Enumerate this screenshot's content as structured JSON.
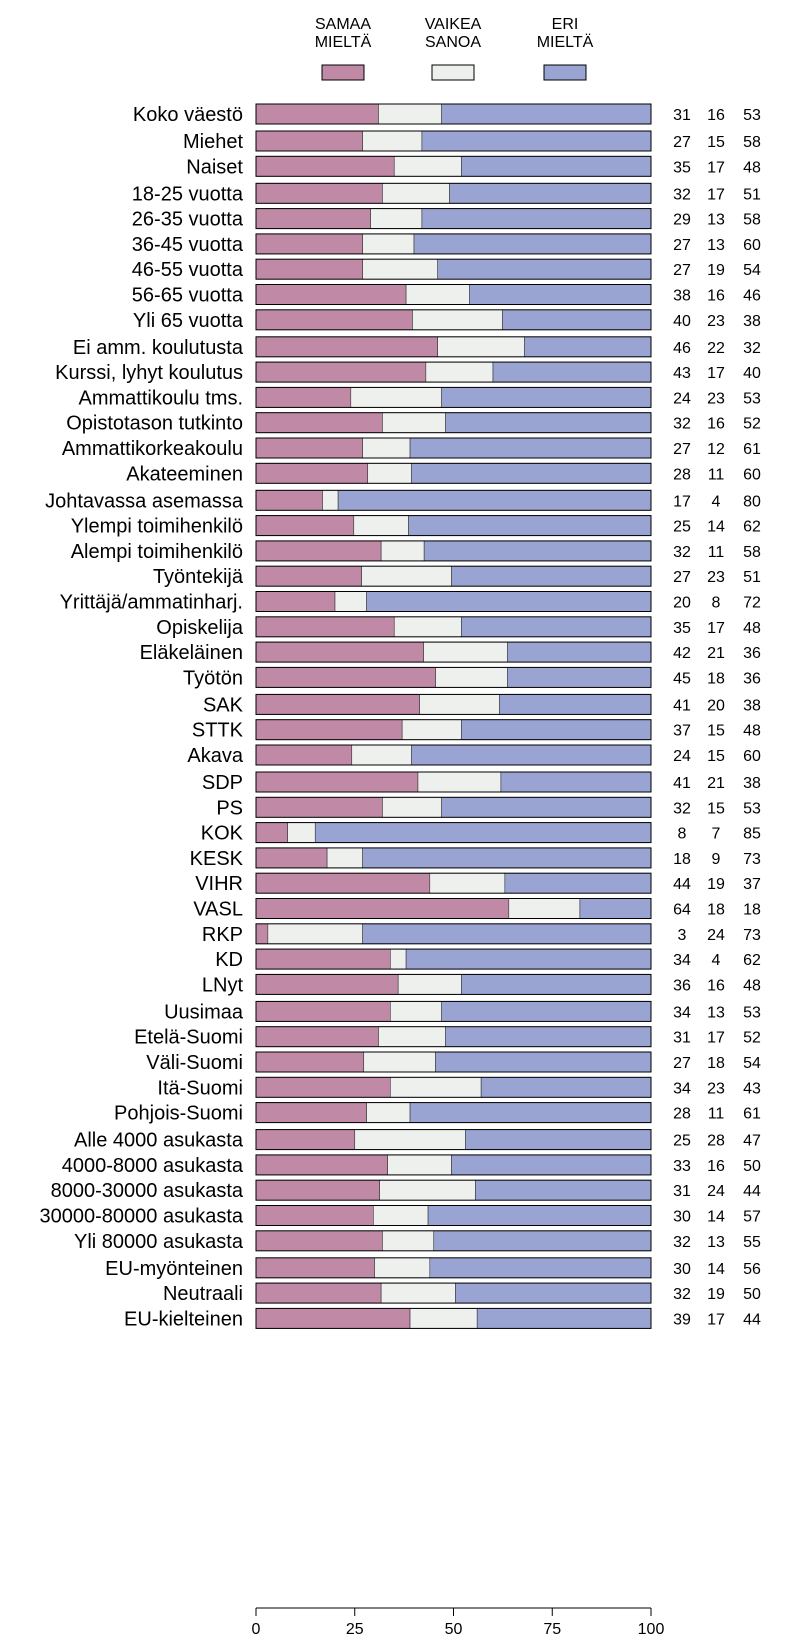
{
  "chart_data": {
    "type": "bar",
    "orientation": "horizontal",
    "stacked": true,
    "legend": [
      {
        "lines": [
          "SAMAA",
          "MIELTÄ"
        ],
        "color": "#c08aa6"
      },
      {
        "lines": [
          "VAIKEA",
          "SANOA"
        ],
        "color": "#eef0ee"
      },
      {
        "lines": [
          "ERI",
          "MIELTÄ"
        ],
        "color": "#9aa4d2"
      }
    ],
    "xlim": [
      0,
      100
    ],
    "xticks": [
      0,
      25,
      50,
      75,
      100
    ],
    "groups": [
      {
        "rows": [
          {
            "label": "Koko väestö",
            "values": [
              31,
              16,
              53
            ]
          }
        ]
      },
      {
        "rows": [
          {
            "label": "Miehet",
            "values": [
              27,
              15,
              58
            ]
          },
          {
            "label": "Naiset",
            "values": [
              35,
              17,
              48
            ]
          }
        ]
      },
      {
        "rows": [
          {
            "label": "18-25 vuotta",
            "values": [
              32,
              17,
              51
            ]
          },
          {
            "label": "26-35 vuotta",
            "values": [
              29,
              13,
              58
            ]
          },
          {
            "label": "36-45 vuotta",
            "values": [
              27,
              13,
              60
            ]
          },
          {
            "label": "46-55 vuotta",
            "values": [
              27,
              19,
              54
            ]
          },
          {
            "label": "56-65 vuotta",
            "values": [
              38,
              16,
              46
            ]
          },
          {
            "label": "Yli 65 vuotta",
            "values": [
              40,
              23,
              38
            ]
          }
        ]
      },
      {
        "rows": [
          {
            "label": "Ei amm. koulutusta",
            "values": [
              46,
              22,
              32
            ]
          },
          {
            "label": "Kurssi, lyhyt koulutus",
            "values": [
              43,
              17,
              40
            ]
          },
          {
            "label": "Ammattikoulu tms.",
            "values": [
              24,
              23,
              53
            ]
          },
          {
            "label": "Opistotason tutkinto",
            "values": [
              32,
              16,
              52
            ]
          },
          {
            "label": "Ammattikorkeakoulu",
            "values": [
              27,
              12,
              61
            ]
          },
          {
            "label": "Akateeminen",
            "values": [
              28,
              11,
              60
            ]
          }
        ]
      },
      {
        "rows": [
          {
            "label": "Johtavassa asemassa",
            "values": [
              17,
              4,
              80
            ]
          },
          {
            "label": "Ylempi toimihenkilö",
            "values": [
              25,
              14,
              62
            ]
          },
          {
            "label": "Alempi toimihenkilö",
            "values": [
              32,
              11,
              58
            ]
          },
          {
            "label": "Työntekijä",
            "values": [
              27,
              23,
              51
            ]
          },
          {
            "label": "Yrittäjä/ammatinharj.",
            "values": [
              20,
              8,
              72
            ]
          },
          {
            "label": "Opiskelija",
            "values": [
              35,
              17,
              48
            ]
          },
          {
            "label": "Eläkeläinen",
            "values": [
              42,
              21,
              36
            ]
          },
          {
            "label": "Työtön",
            "values": [
              45,
              18,
              36
            ]
          }
        ]
      },
      {
        "rows": [
          {
            "label": "SAK",
            "values": [
              41,
              20,
              38
            ]
          },
          {
            "label": "STTK",
            "values": [
              37,
              15,
              48
            ]
          },
          {
            "label": "Akava",
            "values": [
              24,
              15,
              60
            ]
          }
        ]
      },
      {
        "rows": [
          {
            "label": "SDP",
            "values": [
              41,
              21,
              38
            ]
          },
          {
            "label": "PS",
            "values": [
              32,
              15,
              53
            ]
          },
          {
            "label": "KOK",
            "values": [
              8,
              7,
              85
            ]
          },
          {
            "label": "KESK",
            "values": [
              18,
              9,
              73
            ]
          },
          {
            "label": "VIHR",
            "values": [
              44,
              19,
              37
            ]
          },
          {
            "label": "VASL",
            "values": [
              64,
              18,
              18
            ]
          },
          {
            "label": "RKP",
            "values": [
              3,
              24,
              73
            ]
          },
          {
            "label": "KD",
            "values": [
              34,
              4,
              62
            ]
          },
          {
            "label": "LNyt",
            "values": [
              36,
              16,
              48
            ]
          }
        ]
      },
      {
        "rows": [
          {
            "label": "Uusimaa",
            "values": [
              34,
              13,
              53
            ]
          },
          {
            "label": "Etelä-Suomi",
            "values": [
              31,
              17,
              52
            ]
          },
          {
            "label": "Väli-Suomi",
            "values": [
              27,
              18,
              54
            ]
          },
          {
            "label": "Itä-Suomi",
            "values": [
              34,
              23,
              43
            ]
          },
          {
            "label": "Pohjois-Suomi",
            "values": [
              28,
              11,
              61
            ]
          }
        ]
      },
      {
        "rows": [
          {
            "label": "Alle 4000 asukasta",
            "values": [
              25,
              28,
              47
            ]
          },
          {
            "label": "4000-8000 asukasta",
            "values": [
              33,
              16,
              50
            ]
          },
          {
            "label": "8000-30000 asukasta",
            "values": [
              31,
              24,
              44
            ]
          },
          {
            "label": "30000-80000 asukasta",
            "values": [
              30,
              14,
              57
            ]
          },
          {
            "label": "Yli 80000 asukasta",
            "values": [
              32,
              13,
              55
            ]
          }
        ]
      },
      {
        "rows": [
          {
            "label": "EU-myönteinen",
            "values": [
              30,
              14,
              56
            ]
          },
          {
            "label": "Neutraali",
            "values": [
              32,
              19,
              50
            ]
          },
          {
            "label": "EU-kielteinen",
            "values": [
              39,
              17,
              44
            ]
          }
        ]
      }
    ]
  }
}
